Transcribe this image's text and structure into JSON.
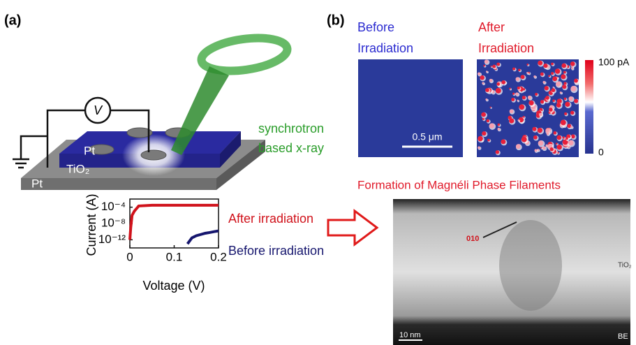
{
  "panel_a": {
    "label": "(a)",
    "voltmeter": "V",
    "top_electrode": "Pt",
    "bottom_electrode": "Pt",
    "film": "TiO₂",
    "beam_label": [
      "synchrotron",
      "based x-ray"
    ],
    "plot": {
      "type": "line",
      "x_label": "Voltage (V)",
      "y_label": "Current (A)",
      "log_y": true,
      "xlim": [
        0,
        0.2
      ],
      "xticks": [
        0,
        0.1,
        0.2
      ],
      "ylim": [
        1e-14,
        0.01
      ],
      "yticks": [
        {
          "value": 0.0001,
          "label": "10⁻⁴"
        },
        {
          "value": 1e-08,
          "label": "10⁻⁸"
        },
        {
          "value": 1e-12,
          "label": "10⁻¹²"
        }
      ],
      "series": [
        {
          "name": "After irradiation",
          "color": "#d0121b",
          "x": [
            0,
            0.002,
            0.005,
            0.01,
            0.02,
            0.05,
            0.1,
            0.15,
            0.2
          ],
          "values": [
            1e-12,
            1e-09,
            1e-06,
            1e-05,
            0.0002,
            0.0003,
            0.0003,
            0.0003,
            0.0003
          ]
        },
        {
          "name": "Before irradiation",
          "color": "#16166e",
          "x": [
            0.13,
            0.14,
            0.15,
            0.16,
            0.17,
            0.18,
            0.19,
            0.2
          ],
          "values": [
            1e-13,
            3e-12,
            1e-11,
            2e-11,
            4e-11,
            6e-11,
            1e-10,
            1.5e-10
          ]
        }
      ]
    }
  },
  "panel_b": {
    "label": "(b)",
    "before_title": [
      "Before",
      "Irradiation"
    ],
    "after_title": [
      "After",
      "Irradiation"
    ],
    "colorbar_max": "100 pA",
    "colorbar_min": "0",
    "scale_bar": "0.5 μm",
    "tem_title": "Formation of Magnéli Phase Filaments",
    "tem_labels": {
      "direction": "010",
      "material": "TiO₂",
      "scale_bar": "10 nm",
      "electrode": "BE"
    }
  }
}
